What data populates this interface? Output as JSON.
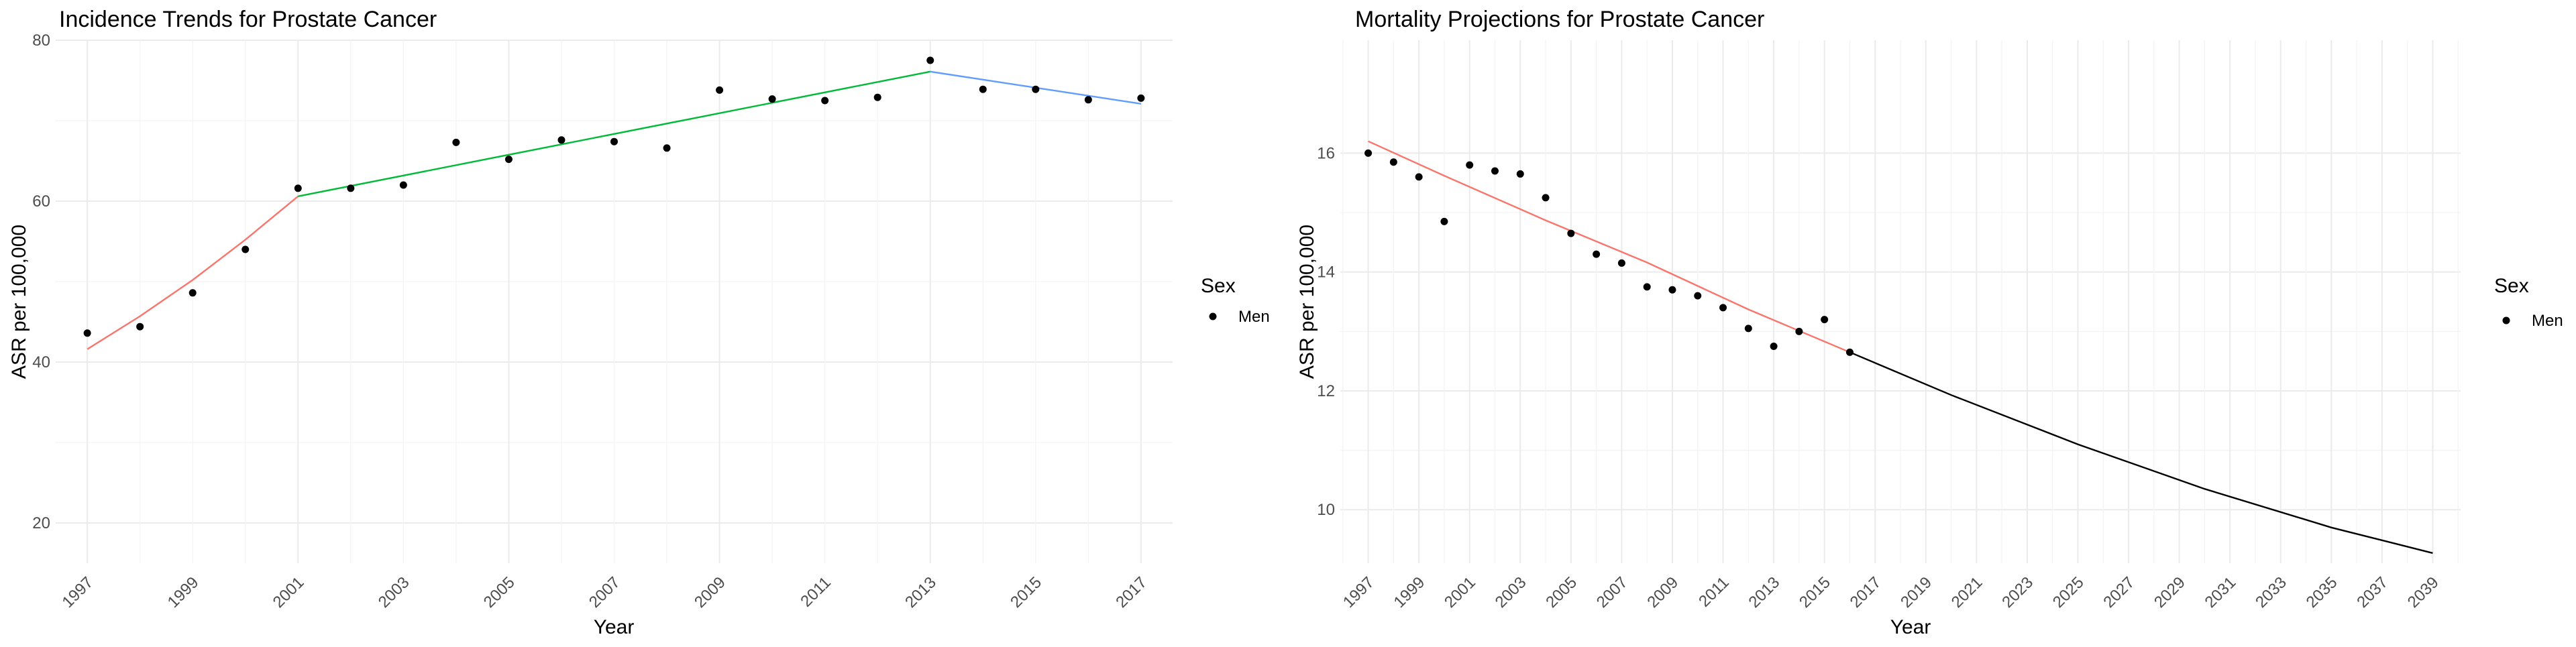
{
  "chart_data": [
    {
      "type": "line",
      "title": "Incidence Trends for Prostate Cancer",
      "xlabel": "Year",
      "ylabel": "ASR per 100,000",
      "xlim": [
        1996.4,
        2017.6
      ],
      "ylim": [
        15,
        80
      ],
      "x_major_ticks": [
        1997,
        2001,
        2005,
        2009,
        2013,
        2017
      ],
      "x_tick_labels": [
        1997,
        1999,
        2001,
        2003,
        2005,
        2007,
        2009,
        2011,
        2013,
        2015,
        2017
      ],
      "y_ticks": [
        20,
        40,
        60,
        80
      ],
      "grid": true,
      "legend": {
        "title": "Sex",
        "entries": [
          "Men"
        ],
        "position": "right"
      },
      "points": {
        "name": "Men",
        "x": [
          1997,
          1998,
          1999,
          2000,
          2001,
          2002,
          2003,
          2004,
          2005,
          2006,
          2007,
          2008,
          2009,
          2010,
          2011,
          2012,
          2013,
          2014,
          2015,
          2016,
          2017
        ],
        "y": [
          43.6,
          44.4,
          48.6,
          54.0,
          61.6,
          61.6,
          62.0,
          67.3,
          65.2,
          67.6,
          67.4,
          66.6,
          73.8,
          72.7,
          72.5,
          72.9,
          77.5,
          73.9,
          73.9,
          72.6,
          72.8
        ]
      },
      "fit_segments": [
        {
          "color": "#F8766D",
          "x": [
            1997,
            1998,
            1999,
            2000,
            2001
          ],
          "y": [
            41.6,
            45.7,
            50.2,
            55.2,
            60.6
          ]
        },
        {
          "color": "#00BA38",
          "x": [
            2001,
            2013
          ],
          "y": [
            60.6,
            76.1
          ]
        },
        {
          "color": "#619CFF",
          "x": [
            2013,
            2017
          ],
          "y": [
            76.1,
            72.1
          ]
        }
      ]
    },
    {
      "type": "line",
      "title": "Mortality Projections for Prostate Cancer",
      "xlabel": "Year",
      "ylabel": "ASR per 100,000",
      "xlim": [
        1995.9,
        2040.1
      ],
      "ylim": [
        9.1,
        17.9
      ],
      "x_tick_labels": [
        1997,
        1999,
        2001,
        2003,
        2005,
        2007,
        2009,
        2011,
        2013,
        2015,
        2017,
        2019,
        2021,
        2023,
        2025,
        2027,
        2029,
        2031,
        2033,
        2035,
        2037,
        2039
      ],
      "y_ticks": [
        10,
        12,
        14,
        16
      ],
      "grid": true,
      "legend": {
        "title": "Sex",
        "entries": [
          "Men"
        ],
        "position": "right"
      },
      "points": {
        "name": "Men",
        "x": [
          1997,
          1998,
          1999,
          2000,
          2001,
          2002,
          2003,
          2004,
          2005,
          2006,
          2007,
          2008,
          2009,
          2010,
          2011,
          2012,
          2013,
          2014,
          2015,
          2016
        ],
        "y": [
          16.0,
          15.85,
          15.6,
          14.85,
          15.8,
          15.7,
          15.65,
          15.25,
          14.65,
          14.3,
          14.15,
          13.75,
          13.7,
          13.6,
          13.4,
          13.05,
          12.75,
          13.0,
          13.2,
          12.65
        ]
      },
      "fit_segments": [
        {
          "color": "#F8766D",
          "x": [
            1997,
            2000,
            2004,
            2008,
            2012,
            2016
          ],
          "y": [
            16.2,
            15.62,
            14.87,
            14.16,
            13.37,
            12.65
          ]
        },
        {
          "color": "#000000",
          "x": [
            2016,
            2020,
            2025,
            2030,
            2035,
            2039
          ],
          "y": [
            12.65,
            11.93,
            11.1,
            10.35,
            9.7,
            9.27
          ]
        }
      ]
    }
  ]
}
